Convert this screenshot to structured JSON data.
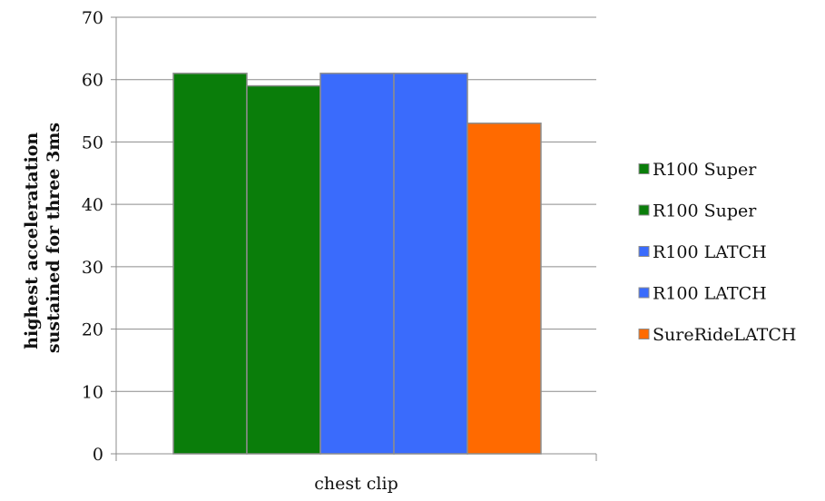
{
  "chart_data": {
    "type": "bar",
    "categories": [
      "chest clip"
    ],
    "series": [
      {
        "name": "R100 Super",
        "values": [
          61
        ],
        "color": "#0a7d0a"
      },
      {
        "name": "R100 Super",
        "values": [
          59
        ],
        "color": "#0a7d0a"
      },
      {
        "name": "R100 LATCH",
        "values": [
          61
        ],
        "color": "#3a6bfc"
      },
      {
        "name": "R100 LATCH",
        "values": [
          61
        ],
        "color": "#3a6bfc"
      },
      {
        "name": "SureRideLATCH",
        "values": [
          53
        ],
        "color": "#ff6a00"
      }
    ],
    "ylabel_lines": [
      "highest acceleratation",
      "sustained for three 3ms"
    ],
    "xlabel": "",
    "ylim": [
      0,
      70
    ],
    "yticks": [
      "0",
      "10",
      "20",
      "30",
      "40",
      "50",
      "60",
      "70"
    ],
    "grid": true,
    "legend_position": "right"
  }
}
